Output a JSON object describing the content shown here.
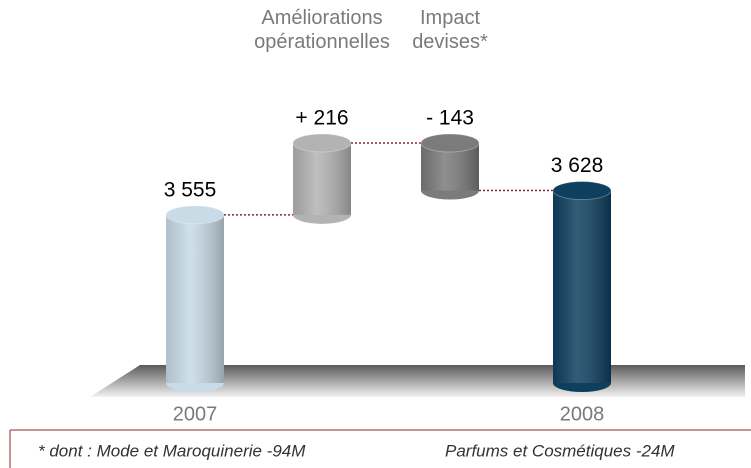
{
  "chart_data": {
    "type": "waterfall",
    "categories": [
      "2007",
      "Améliorations opérationnelles",
      "Impact devises*",
      "2008"
    ],
    "values": [
      3555,
      216,
      -143,
      3628
    ],
    "value_labels": [
      "3 555",
      "+ 216",
      "- 143",
      "3 628"
    ],
    "colors": [
      "#c8dbe7",
      "#b3b3b3",
      "#7b7b7b",
      "#0f3f5f"
    ],
    "connector_color": "#8b2a2a",
    "ylim": [
      3050,
      3900
    ],
    "footnote": [
      "* dont : Mode et Maroquinerie -94M",
      "Parfums et Cosmétiques -24M"
    ]
  }
}
